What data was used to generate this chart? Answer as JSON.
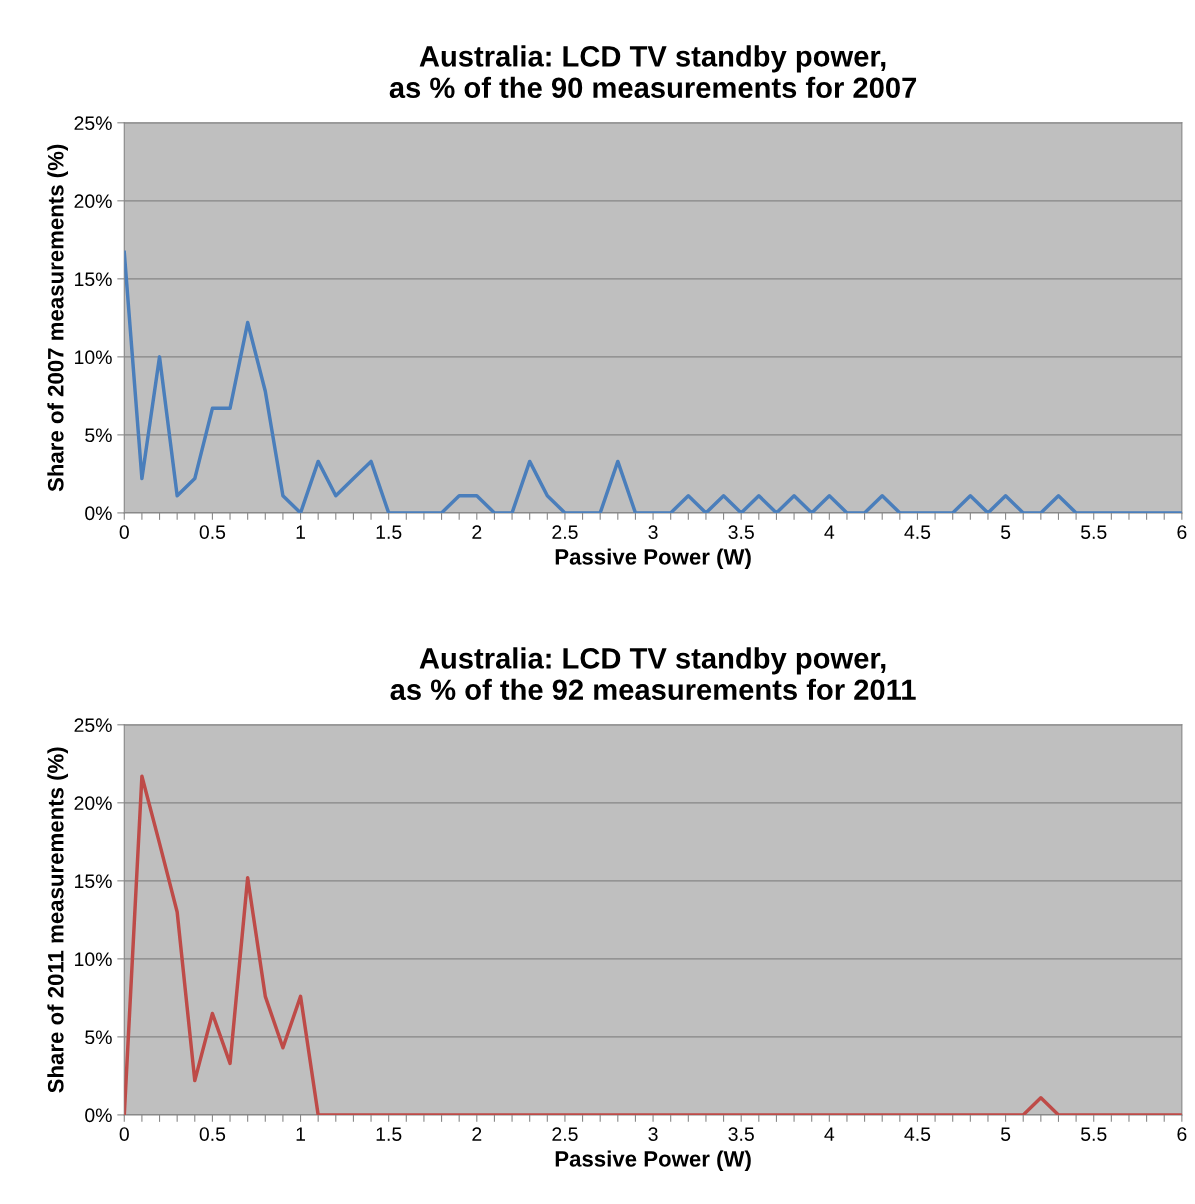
{
  "chart_data": [
    {
      "type": "line",
      "title": "Australia: LCD TV standby power,\nas % of the 90 measurements for 2007",
      "xlabel": "Passive Power (W)",
      "ylabel": "Share of 2007 measurements (%)",
      "x": [
        0,
        0.1,
        0.2,
        0.3,
        0.4,
        0.5,
        0.6,
        0.7,
        0.8,
        0.9,
        1,
        1.1,
        1.2,
        1.3,
        1.4,
        1.5,
        1.6,
        1.7,
        1.8,
        1.9,
        2,
        2.1,
        2.2,
        2.3,
        2.4,
        2.5,
        2.6,
        2.7,
        2.8,
        2.9,
        3,
        3.1,
        3.2,
        3.3,
        3.4,
        3.5,
        3.6,
        3.7,
        3.8,
        3.9,
        4,
        4.1,
        4.2,
        4.3,
        4.4,
        4.5,
        4.6,
        4.7,
        4.8,
        4.9,
        5,
        5.1,
        5.2,
        5.3,
        5.4,
        5.5,
        5.6,
        5.7,
        5.8,
        5.9,
        6
      ],
      "series": [
        {
          "color": "#4a7ebb",
          "values": [
            16.7,
            2.2,
            10,
            1.1,
            2.2,
            6.7,
            6.7,
            12.2,
            7.8,
            1.1,
            0,
            3.3,
            1.1,
            2.2,
            3.3,
            0,
            0,
            0,
            0,
            1.1,
            1.1,
            0,
            0,
            3.3,
            1.1,
            0,
            0,
            0,
            3.3,
            0,
            0,
            0,
            1.1,
            0,
            1.1,
            0,
            1.1,
            0,
            1.1,
            0,
            1.1,
            0,
            0,
            1.1,
            0,
            0,
            0,
            0,
            1.1,
            0,
            1.1,
            0,
            0,
            1.1,
            0,
            0,
            0,
            0,
            0,
            0,
            0
          ]
        }
      ],
      "xlim": [
        0,
        6
      ],
      "xticks": [
        0,
        {
          "value": 0.1,
          "label": null
        },
        {
          "value": 0.2,
          "label": null
        },
        {
          "value": 0.3,
          "label": null
        },
        {
          "value": 0.4,
          "label": null
        },
        0.5,
        {
          "value": 0.6,
          "label": null
        },
        {
          "value": 0.7,
          "label": null
        },
        {
          "value": 0.8,
          "label": null
        },
        {
          "value": 0.9,
          "label": null
        },
        1,
        {
          "value": 1.1,
          "label": null
        },
        {
          "value": 1.2,
          "label": null
        },
        {
          "value": 1.3,
          "label": null
        },
        {
          "value": 1.4,
          "label": null
        },
        1.5,
        {
          "value": 1.6,
          "label": null
        },
        {
          "value": 1.7,
          "label": null
        },
        {
          "value": 1.8,
          "label": null
        },
        {
          "value": 1.9,
          "label": null
        },
        2,
        {
          "value": 2.1,
          "label": null
        },
        {
          "value": 2.2,
          "label": null
        },
        {
          "value": 2.3,
          "label": null
        },
        {
          "value": 2.4,
          "label": null
        },
        2.5,
        {
          "value": 2.6,
          "label": null
        },
        {
          "value": 2.7,
          "label": null
        },
        {
          "value": 2.8,
          "label": null
        },
        {
          "value": 2.9,
          "label": null
        },
        3,
        {
          "value": 3.1,
          "label": null
        },
        {
          "value": 3.2,
          "label": null
        },
        {
          "value": 3.3,
          "label": null
        },
        {
          "value": 3.4,
          "label": null
        },
        3.5,
        {
          "value": 3.6,
          "label": null
        },
        {
          "value": 3.7,
          "label": null
        },
        {
          "value": 3.8,
          "label": null
        },
        {
          "value": 3.9,
          "label": null
        },
        4,
        {
          "value": 4.1,
          "label": null
        },
        {
          "value": 4.2,
          "label": null
        },
        {
          "value": 4.3,
          "label": null
        },
        {
          "value": 4.4,
          "label": null
        },
        4.5,
        {
          "value": 4.6,
          "label": null
        },
        {
          "value": 4.7,
          "label": null
        },
        {
          "value": 4.8,
          "label": null
        },
        {
          "value": 4.9,
          "label": null
        },
        5,
        {
          "value": 5.1,
          "label": null
        },
        {
          "value": 5.2,
          "label": null
        },
        {
          "value": 5.3,
          "label": null
        },
        {
          "value": 5.4,
          "label": null
        },
        5.5,
        {
          "value": 5.6,
          "label": null
        },
        {
          "value": 5.7,
          "label": null
        },
        {
          "value": 5.8,
          "label": null
        },
        {
          "value": 5.9,
          "label": null
        },
        6
      ],
      "ylim": [
        0,
        25
      ],
      "yticks": [
        {
          "value": 0,
          "label": "0%"
        },
        {
          "value": 5,
          "label": "5%"
        },
        {
          "value": 10,
          "label": "10%"
        },
        {
          "value": 15,
          "label": "15%"
        },
        {
          "value": 20,
          "label": "20%"
        },
        {
          "value": 25,
          "label": "25%"
        }
      ],
      "grid": "y",
      "legend": false,
      "marker": "none",
      "line_style": "solid"
    },
    {
      "type": "line",
      "title": "Australia: LCD TV standby power,\nas % of the 92 measurements for 2011",
      "xlabel": "Passive Power (W)",
      "ylabel": "Share of 2011 measurements (%)",
      "x": [
        0,
        0.1,
        0.2,
        0.3,
        0.4,
        0.5,
        0.6,
        0.7,
        0.8,
        0.9,
        1,
        1.1,
        1.2,
        1.3,
        1.4,
        1.5,
        1.6,
        1.7,
        1.8,
        1.9,
        2,
        2.1,
        2.2,
        2.3,
        2.4,
        2.5,
        2.6,
        2.7,
        2.8,
        2.9,
        3,
        3.1,
        3.2,
        3.3,
        3.4,
        3.5,
        3.6,
        3.7,
        3.8,
        3.9,
        4,
        4.1,
        4.2,
        4.3,
        4.4,
        4.5,
        4.6,
        4.7,
        4.8,
        4.9,
        5,
        5.1,
        5.2,
        5.3,
        5.4,
        5.5,
        5.6,
        5.7,
        5.8,
        5.9,
        6
      ],
      "series": [
        {
          "color": "#be4b48",
          "values": [
            0,
            21.7,
            17.4,
            13,
            2.2,
            6.5,
            3.3,
            15.2,
            7.6,
            4.3,
            7.6,
            0,
            0,
            0,
            0,
            0,
            0,
            0,
            0,
            0,
            0,
            0,
            0,
            0,
            0,
            0,
            0,
            0,
            0,
            0,
            0,
            0,
            0,
            0,
            0,
            0,
            0,
            0,
            0,
            0,
            0,
            0,
            0,
            0,
            0,
            0,
            0,
            0,
            0,
            0,
            0,
            0,
            1.1,
            0,
            0,
            0,
            0,
            0,
            0,
            0,
            0
          ]
        }
      ],
      "xlim": [
        0,
        6
      ],
      "xticks": [
        0,
        {
          "value": 0.1,
          "label": null
        },
        {
          "value": 0.2,
          "label": null
        },
        {
          "value": 0.3,
          "label": null
        },
        {
          "value": 0.4,
          "label": null
        },
        0.5,
        {
          "value": 0.6,
          "label": null
        },
        {
          "value": 0.7,
          "label": null
        },
        {
          "value": 0.8,
          "label": null
        },
        {
          "value": 0.9,
          "label": null
        },
        1,
        {
          "value": 1.1,
          "label": null
        },
        {
          "value": 1.2,
          "label": null
        },
        {
          "value": 1.3,
          "label": null
        },
        {
          "value": 1.4,
          "label": null
        },
        1.5,
        {
          "value": 1.6,
          "label": null
        },
        {
          "value": 1.7,
          "label": null
        },
        {
          "value": 1.8,
          "label": null
        },
        {
          "value": 1.9,
          "label": null
        },
        2,
        {
          "value": 2.1,
          "label": null
        },
        {
          "value": 2.2,
          "label": null
        },
        {
          "value": 2.3,
          "label": null
        },
        {
          "value": 2.4,
          "label": null
        },
        2.5,
        {
          "value": 2.6,
          "label": null
        },
        {
          "value": 2.7,
          "label": null
        },
        {
          "value": 2.8,
          "label": null
        },
        {
          "value": 2.9,
          "label": null
        },
        3,
        {
          "value": 3.1,
          "label": null
        },
        {
          "value": 3.2,
          "label": null
        },
        {
          "value": 3.3,
          "label": null
        },
        {
          "value": 3.4,
          "label": null
        },
        3.5,
        {
          "value": 3.6,
          "label": null
        },
        {
          "value": 3.7,
          "label": null
        },
        {
          "value": 3.8,
          "label": null
        },
        {
          "value": 3.9,
          "label": null
        },
        4,
        {
          "value": 4.1,
          "label": null
        },
        {
          "value": 4.2,
          "label": null
        },
        {
          "value": 4.3,
          "label": null
        },
        {
          "value": 4.4,
          "label": null
        },
        4.5,
        {
          "value": 4.6,
          "label": null
        },
        {
          "value": 4.7,
          "label": null
        },
        {
          "value": 4.8,
          "label": null
        },
        {
          "value": 4.9,
          "label": null
        },
        5,
        {
          "value": 5.1,
          "label": null
        },
        {
          "value": 5.2,
          "label": null
        },
        {
          "value": 5.3,
          "label": null
        },
        {
          "value": 5.4,
          "label": null
        },
        5.5,
        {
          "value": 5.6,
          "label": null
        },
        {
          "value": 5.7,
          "label": null
        },
        {
          "value": 5.8,
          "label": null
        },
        {
          "value": 5.9,
          "label": null
        },
        6
      ],
      "ylim": [
        0,
        25
      ],
      "yticks": [
        {
          "value": 0,
          "label": "0%"
        },
        {
          "value": 5,
          "label": "5%"
        },
        {
          "value": 10,
          "label": "10%"
        },
        {
          "value": 15,
          "label": "15%"
        },
        {
          "value": 20,
          "label": "20%"
        },
        {
          "value": 25,
          "label": "25%"
        }
      ],
      "grid": "y",
      "legend": false,
      "marker": "none",
      "line_style": "solid"
    }
  ]
}
